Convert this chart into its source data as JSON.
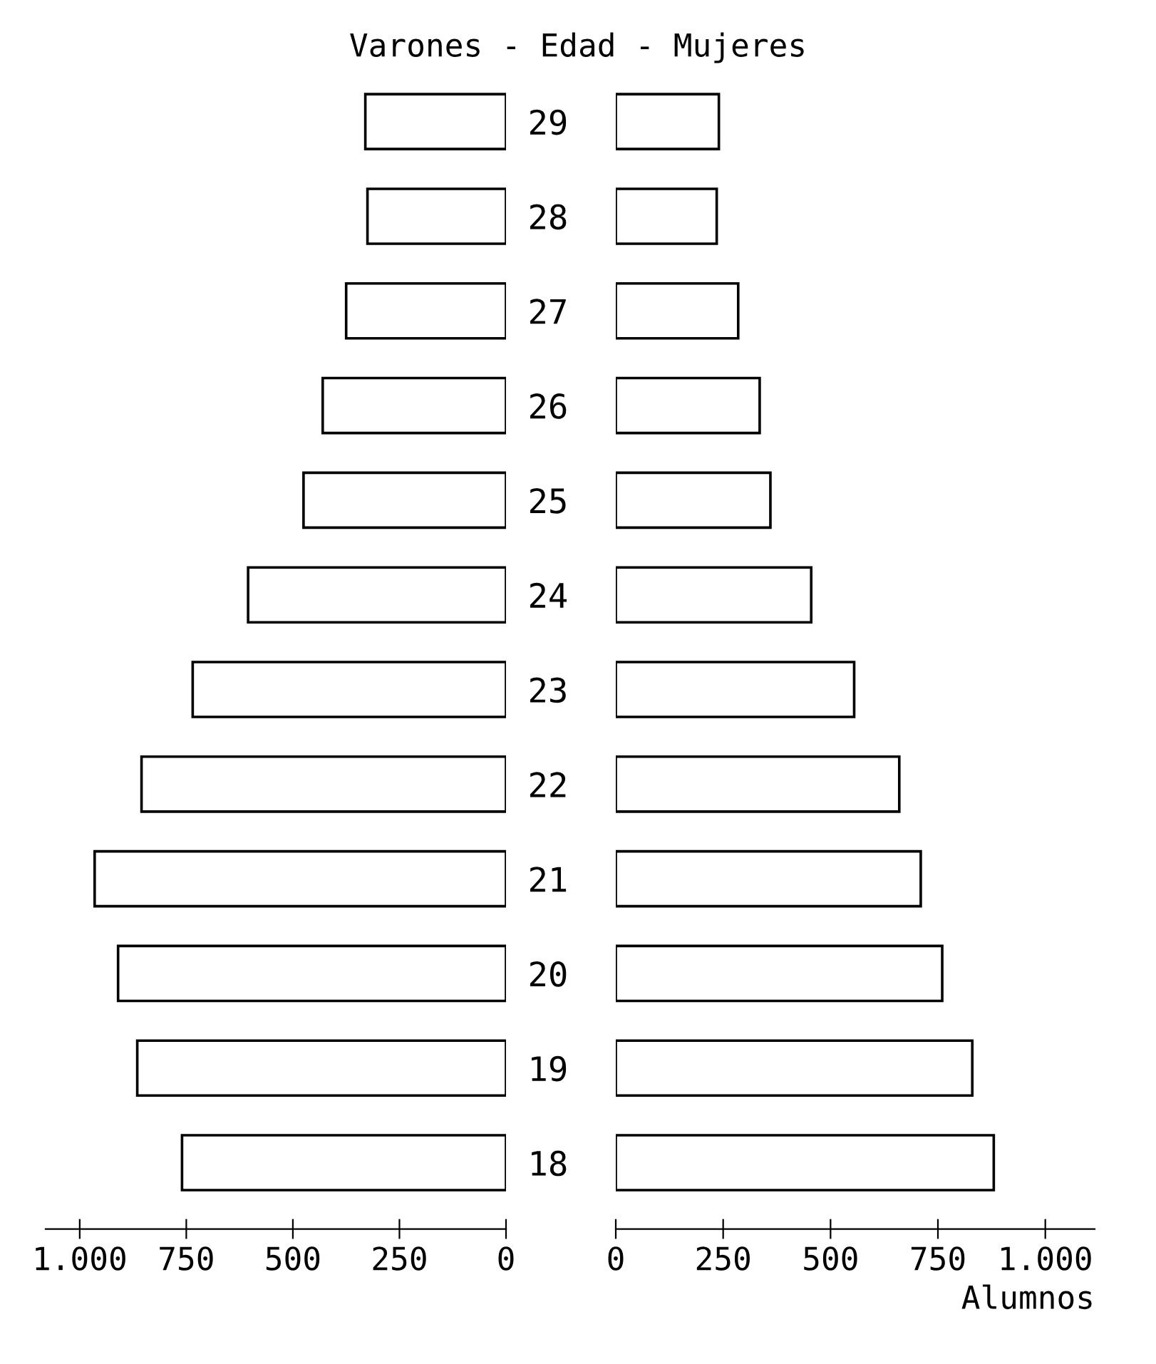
{
  "chart_data": [
    {
      "type": "bar",
      "orientation": "horizontal",
      "title": "Varones - Edad - Mujeres",
      "tick_labels": "x",
      "categories": [
        "29",
        "28",
        "27",
        "26",
        "25",
        "24",
        "23",
        "22",
        "21",
        "20",
        "19",
        "18"
      ],
      "series": [
        {
          "color": "#000000",
          "values": [
            330,
            325,
            375,
            430,
            475,
            605,
            735,
            855,
            965,
            910,
            865,
            760
          ]
        }
      ],
      "xlim": [
        1080,
        0
      ],
      "xticks": [
        {
          "value": 1000,
          "label": "1.000"
        },
        750,
        500,
        250,
        0
      ]
    },
    {
      "type": "bar",
      "orientation": "horizontal",
      "xlabel": "Alumnos",
      "categories": [
        "29",
        "28",
        "27",
        "26",
        "25",
        "24",
        "23",
        "22",
        "21",
        "20",
        "19",
        "18"
      ],
      "series": [
        {
          "color": "#000000",
          "values": [
            240,
            235,
            285,
            335,
            360,
            455,
            555,
            660,
            710,
            760,
            830,
            880
          ]
        }
      ],
      "xlim": [
        0,
        1115
      ],
      "xticks": [
        0,
        250,
        500,
        750,
        {
          "value": 1000,
          "label": "1.000"
        }
      ]
    }
  ]
}
